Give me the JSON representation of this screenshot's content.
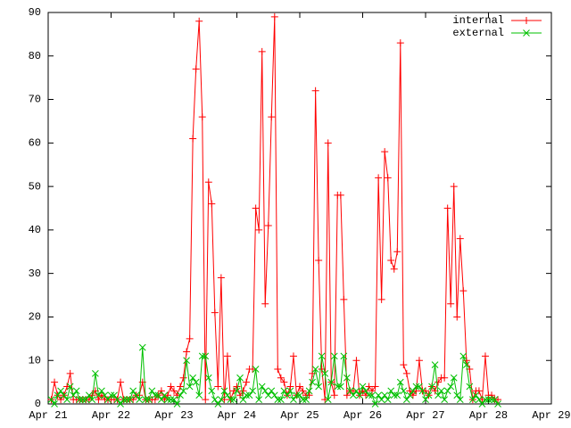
{
  "chart_data": {
    "type": "line",
    "x": [
      21.05,
      21.1,
      21.15,
      21.2,
      21.25,
      21.3,
      21.35,
      21.4,
      21.45,
      21.5,
      21.55,
      21.6,
      21.65,
      21.7,
      21.75,
      21.8,
      21.85,
      21.9,
      21.95,
      22,
      22.05,
      22.1,
      22.15,
      22.2,
      22.25,
      22.3,
      22.35,
      22.4,
      22.45,
      22.5,
      22.55,
      22.6,
      22.65,
      22.7,
      22.75,
      22.8,
      22.85,
      22.9,
      22.95,
      23,
      23.05,
      23.1,
      23.15,
      23.2,
      23.25,
      23.3,
      23.35,
      23.4,
      23.45,
      23.5,
      23.55,
      23.6,
      23.65,
      23.7,
      23.75,
      23.8,
      23.85,
      23.9,
      23.95,
      24,
      24.05,
      24.1,
      24.15,
      24.2,
      24.25,
      24.3,
      24.35,
      24.4,
      24.45,
      24.5,
      24.55,
      24.6,
      24.65,
      24.7,
      24.75,
      24.8,
      24.85,
      24.9,
      24.95,
      25,
      25.05,
      25.1,
      25.15,
      25.2,
      25.25,
      25.3,
      25.35,
      25.4,
      25.45,
      25.5,
      25.55,
      25.6,
      25.65,
      25.7,
      25.75,
      25.8,
      25.85,
      25.9,
      25.95,
      26,
      26.05,
      26.1,
      26.15,
      26.2,
      26.25,
      26.3,
      26.35,
      26.4,
      26.45,
      26.5,
      26.55,
      26.6,
      26.65,
      26.7,
      26.75,
      26.8,
      26.85,
      26.9,
      26.95,
      27,
      27.05,
      27.1,
      27.15,
      27.2,
      27.25,
      27.3,
      27.35,
      27.4,
      27.45,
      27.5,
      27.55,
      27.6,
      27.65,
      27.7,
      27.75,
      27.8,
      27.85,
      27.9,
      27.95,
      28,
      28.05,
      28.1,
      28.15
    ],
    "xlim": [
      21,
      29
    ],
    "xticks": [
      {
        "value": 21,
        "label": "Apr 21"
      },
      {
        "value": 22,
        "label": "Apr 22"
      },
      {
        "value": 23,
        "label": "Apr 23"
      },
      {
        "value": 24,
        "label": "Apr 24"
      },
      {
        "value": 25,
        "label": "Apr 25"
      },
      {
        "value": 26,
        "label": "Apr 26"
      },
      {
        "value": 27,
        "label": "Apr 27"
      },
      {
        "value": 28,
        "label": "Apr 28"
      },
      {
        "value": 29,
        "label": "Apr 29"
      }
    ],
    "ylim": [
      0,
      90
    ],
    "yticks": [
      0,
      10,
      20,
      30,
      40,
      50,
      60,
      70,
      80,
      90
    ],
    "legend": "upper right",
    "series": [
      {
        "name": "internal",
        "color": "#ff0000",
        "marker": "plus",
        "values": [
          1,
          5,
          2,
          1,
          2,
          4,
          7,
          1,
          1,
          1,
          1,
          1,
          1,
          2,
          3,
          1,
          2,
          1,
          1,
          1,
          1,
          1,
          5,
          1,
          1,
          1,
          1,
          2,
          2,
          5,
          1,
          1,
          1,
          1,
          2,
          3,
          1,
          2,
          4,
          3,
          2,
          4,
          6,
          12,
          15,
          61,
          77,
          88,
          66,
          1,
          51,
          46,
          21,
          4,
          29,
          1,
          11,
          1,
          3,
          4,
          2,
          3,
          5,
          8,
          8,
          45,
          40,
          81,
          23,
          41,
          66,
          89,
          8,
          6,
          5,
          2,
          4,
          11,
          2,
          4,
          3,
          2,
          2,
          7,
          72,
          33,
          8,
          1,
          60,
          5,
          2,
          48,
          48,
          24,
          2,
          3,
          3,
          10,
          2,
          3,
          2,
          4,
          3,
          4,
          52,
          24,
          58,
          52,
          33,
          31,
          35,
          83,
          9,
          7,
          3,
          2,
          3,
          10,
          3,
          3,
          2,
          4,
          3,
          5,
          6,
          6,
          45,
          23,
          50,
          20,
          38,
          26,
          10,
          8,
          1,
          3,
          3,
          1,
          11,
          2,
          2,
          1,
          1
        ]
      },
      {
        "name": "external",
        "color": "#00c000",
        "marker": "cross",
        "values": [
          1,
          0,
          2,
          3,
          2,
          1,
          4,
          2,
          3,
          1,
          1,
          1,
          2,
          1,
          7,
          2,
          3,
          2,
          1,
          2,
          2,
          1,
          0,
          1,
          1,
          1,
          3,
          2,
          1,
          13,
          1,
          1,
          3,
          2,
          2,
          1,
          2,
          1,
          1,
          1,
          0,
          2,
          3,
          10,
          4,
          6,
          5,
          2,
          11,
          11,
          6,
          3,
          1,
          0,
          1,
          3,
          2,
          1,
          1,
          3,
          6,
          1,
          2,
          2,
          3,
          8,
          1,
          4,
          3,
          2,
          3,
          2,
          1,
          1,
          3,
          2,
          3,
          1,
          2,
          2,
          1,
          1,
          3,
          5,
          8,
          4,
          11,
          7,
          1,
          5,
          11,
          4,
          4,
          11,
          6,
          3,
          2,
          3,
          2,
          4,
          3,
          2,
          2,
          0,
          2,
          1,
          2,
          1,
          3,
          2,
          2,
          5,
          3,
          1,
          2,
          3,
          4,
          4,
          3,
          1,
          2,
          4,
          9,
          2,
          3,
          1,
          3,
          4,
          6,
          2,
          1,
          11,
          9,
          4,
          1,
          2,
          1,
          0,
          1,
          1,
          1,
          1,
          0
        ]
      }
    ]
  }
}
